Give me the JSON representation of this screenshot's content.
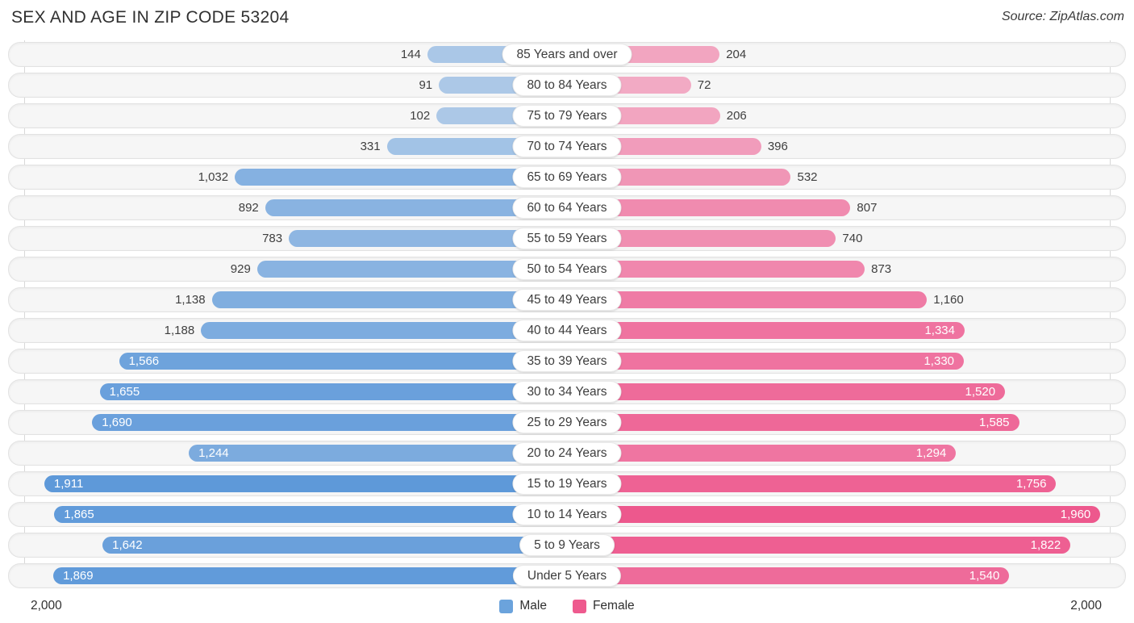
{
  "header": {
    "title": "SEX AND AGE IN ZIP CODE 53204",
    "source": "Source: ZipAtlas.com"
  },
  "colors": {
    "male_base": "#5b97d8",
    "female_base": "#ed568c",
    "male_legend": "#6ba3dc",
    "female_legend": "#ee5a8e",
    "track_bg": "#f6f6f6",
    "track_border": "#e2e2e2",
    "gridline": "#d8d8d8"
  },
  "axis": {
    "left_max": "2,000",
    "right_max": "2,000"
  },
  "legend": [
    {
      "label": "Male",
      "color": "#6ba3dc"
    },
    {
      "label": "Female",
      "color": "#ee5a8e"
    }
  ],
  "chart_data": {
    "type": "bar",
    "subtype": "population-pyramid",
    "title": "SEX AND AGE IN ZIP CODE 53204",
    "source": "Source: ZipAtlas.com",
    "categories": [
      "85 Years and over",
      "80 to 84 Years",
      "75 to 79 Years",
      "70 to 74 Years",
      "65 to 69 Years",
      "60 to 64 Years",
      "55 to 59 Years",
      "50 to 54 Years",
      "45 to 49 Years",
      "40 to 44 Years",
      "35 to 39 Years",
      "30 to 34 Years",
      "25 to 29 Years",
      "20 to 24 Years",
      "15 to 19 Years",
      "10 to 14 Years",
      "5 to 9 Years",
      "Under 5 Years"
    ],
    "series": [
      {
        "name": "Male",
        "values": [
          144,
          91,
          102,
          331,
          1032,
          892,
          783,
          929,
          1138,
          1188,
          1566,
          1655,
          1690,
          1244,
          1911,
          1865,
          1642,
          1869
        ],
        "value_labels": [
          "144",
          "91",
          "102",
          "331",
          "1,032",
          "892",
          "783",
          "929",
          "1,138",
          "1,188",
          "1,566",
          "1,655",
          "1,690",
          "1,244",
          "1,911",
          "1,865",
          "1,642",
          "1,869"
        ]
      },
      {
        "name": "Female",
        "values": [
          204,
          72,
          206,
          396,
          532,
          807,
          740,
          873,
          1160,
          1334,
          1330,
          1520,
          1585,
          1294,
          1756,
          1960,
          1822,
          1540
        ],
        "value_labels": [
          "204",
          "72",
          "206",
          "396",
          "532",
          "807",
          "740",
          "873",
          "1,160",
          "1,334",
          "1,330",
          "1,520",
          "1,585",
          "1,294",
          "1,756",
          "1,960",
          "1,822",
          "1,540"
        ]
      }
    ],
    "xlim": [
      0,
      2000
    ],
    "axis_ticks": [
      "2,000",
      "2,000"
    ],
    "grid": "two vertical boundary lines at ±2,000",
    "legend_position": "bottom-center",
    "orientation": "horizontal-diverging-from-center"
  }
}
